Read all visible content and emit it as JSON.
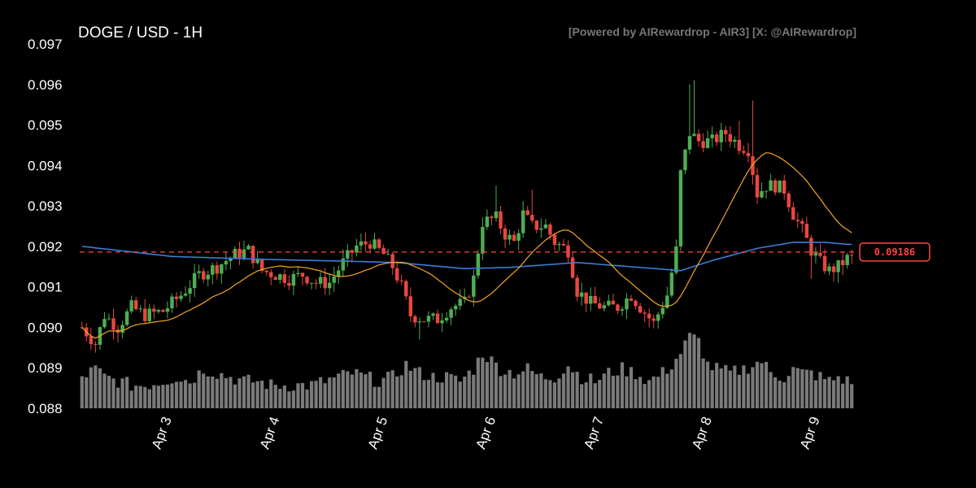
{
  "chart_data": {
    "type": "candlestick",
    "title": "DOGE / USD - 1H",
    "credit": "[Powered by AIRewardrop - AIR3] [X: @AIRewardrop]",
    "y_ticks": [
      "0.097",
      "0.096",
      "0.095",
      "0.094",
      "0.093",
      "0.092",
      "0.091",
      "0.090",
      "0.089",
      "0.088"
    ],
    "ylim": [
      0.088,
      0.097
    ],
    "x_ticks": [
      {
        "label": "Apr 3",
        "index": 19
      },
      {
        "label": "Apr 4",
        "index": 43
      },
      {
        "label": "Apr 5",
        "index": 67
      },
      {
        "label": "Apr 6",
        "index": 91
      },
      {
        "label": "Apr 7",
        "index": 115
      },
      {
        "label": "Apr 8",
        "index": 139
      },
      {
        "label": "Apr 9",
        "index": 163
      }
    ],
    "current_price": "0.09186",
    "current_price_value": 0.09186,
    "colors": {
      "up": "#4caf50",
      "down": "#e8473f",
      "ma_short": "#f5a623",
      "ma_long": "#3b7dd8",
      "volume": "#7a7a7a",
      "price_line": "#ff4444"
    },
    "close_anchors": [
      [
        0,
        0.09
      ],
      [
        3,
        0.0896
      ],
      [
        5,
        0.0903
      ],
      [
        8,
        0.09
      ],
      [
        11,
        0.0905
      ],
      [
        14,
        0.0903
      ],
      [
        18,
        0.0904
      ],
      [
        22,
        0.0908
      ],
      [
        26,
        0.0913
      ],
      [
        30,
        0.0915
      ],
      [
        34,
        0.0918
      ],
      [
        37,
        0.0919
      ],
      [
        40,
        0.0914
      ],
      [
        43,
        0.0913
      ],
      [
        46,
        0.0912
      ],
      [
        49,
        0.0913
      ],
      [
        52,
        0.0911
      ],
      [
        55,
        0.0911
      ],
      [
        58,
        0.0916
      ],
      [
        61,
        0.092
      ],
      [
        64,
        0.0921
      ],
      [
        67,
        0.0918
      ],
      [
        69,
        0.0915
      ],
      [
        71,
        0.091
      ],
      [
        73,
        0.0903
      ],
      [
        76,
        0.0902
      ],
      [
        79,
        0.0902
      ],
      [
        82,
        0.0905
      ],
      [
        85,
        0.0906
      ],
      [
        87,
        0.0912
      ],
      [
        89,
        0.0926
      ],
      [
        92,
        0.0927
      ],
      [
        94,
        0.0923
      ],
      [
        96,
        0.0921
      ],
      [
        98,
        0.0928
      ],
      [
        100,
        0.0925
      ],
      [
        103,
        0.0925
      ],
      [
        105,
        0.0921
      ],
      [
        108,
        0.0919
      ],
      [
        110,
        0.0909
      ],
      [
        113,
        0.0906
      ],
      [
        116,
        0.0905
      ],
      [
        119,
        0.0905
      ],
      [
        122,
        0.0908
      ],
      [
        124,
        0.0905
      ],
      [
        127,
        0.0901
      ],
      [
        130,
        0.0908
      ],
      [
        132,
        0.0919
      ],
      [
        133,
        0.0938
      ],
      [
        135,
        0.0948
      ],
      [
        137,
        0.0946
      ],
      [
        140,
        0.0946
      ],
      [
        143,
        0.0948
      ],
      [
        146,
        0.0945
      ],
      [
        148,
        0.0944
      ],
      [
        150,
        0.0933
      ],
      [
        152,
        0.0935
      ],
      [
        154,
        0.0935
      ],
      [
        156,
        0.0934
      ],
      [
        158,
        0.0928
      ],
      [
        160,
        0.0924
      ],
      [
        162,
        0.0919
      ],
      [
        164,
        0.0916
      ],
      [
        166,
        0.0914
      ],
      [
        168,
        0.0915
      ],
      [
        170,
        0.0917
      ]
    ],
    "volume_anchors": [
      [
        0,
        0.0887
      ],
      [
        3,
        0.0889
      ],
      [
        5,
        0.0887
      ],
      [
        8,
        0.0886
      ],
      [
        11,
        0.0885
      ],
      [
        14,
        0.0885
      ],
      [
        18,
        0.0886
      ],
      [
        21,
        0.0887
      ],
      [
        24,
        0.0886
      ],
      [
        27,
        0.0889
      ],
      [
        30,
        0.0888
      ],
      [
        33,
        0.0887
      ],
      [
        36,
        0.0886
      ],
      [
        39,
        0.0886
      ],
      [
        42,
        0.0885
      ],
      [
        45,
        0.0885
      ],
      [
        48,
        0.0885
      ],
      [
        51,
        0.0885
      ],
      [
        54,
        0.0886
      ],
      [
        57,
        0.0887
      ],
      [
        60,
        0.0888
      ],
      [
        63,
        0.0887
      ],
      [
        66,
        0.0886
      ],
      [
        69,
        0.0887
      ],
      [
        72,
        0.089
      ],
      [
        75,
        0.0888
      ],
      [
        78,
        0.0887
      ],
      [
        81,
        0.0887
      ],
      [
        84,
        0.0886
      ],
      [
        87,
        0.0889
      ],
      [
        89,
        0.0893
      ],
      [
        91,
        0.0891
      ],
      [
        93,
        0.0889
      ],
      [
        96,
        0.0888
      ],
      [
        99,
        0.0889
      ],
      [
        102,
        0.0887
      ],
      [
        105,
        0.0887
      ],
      [
        108,
        0.089
      ],
      [
        111,
        0.0887
      ],
      [
        114,
        0.0886
      ],
      [
        117,
        0.0888
      ],
      [
        120,
        0.0889
      ],
      [
        123,
        0.0888
      ],
      [
        126,
        0.0886
      ],
      [
        129,
        0.0888
      ],
      [
        131,
        0.089
      ],
      [
        133,
        0.0893
      ],
      [
        135,
        0.0897
      ],
      [
        137,
        0.0896
      ],
      [
        139,
        0.089
      ],
      [
        141,
        0.0889
      ],
      [
        144,
        0.0888
      ],
      [
        147,
        0.0889
      ],
      [
        149,
        0.089
      ],
      [
        151,
        0.0891
      ],
      [
        153,
        0.0888
      ],
      [
        156,
        0.0887
      ],
      [
        158,
        0.0889
      ],
      [
        160,
        0.0888
      ],
      [
        162,
        0.0888
      ],
      [
        164,
        0.0887
      ],
      [
        166,
        0.0886
      ],
      [
        168,
        0.0887
      ],
      [
        170,
        0.0886
      ]
    ]
  }
}
